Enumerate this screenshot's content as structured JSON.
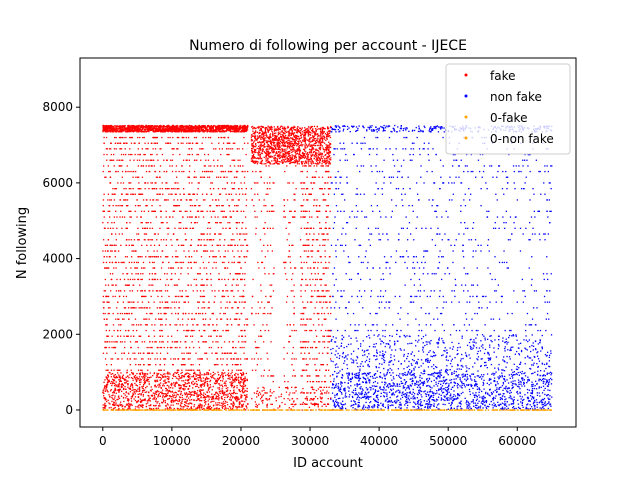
{
  "chart_data": {
    "type": "scatter",
    "title": "Numero di following per account - IJECE",
    "xlabel": "ID account",
    "ylabel": "N following",
    "xlim": [
      -3300,
      68500
    ],
    "ylim": [
      -450,
      9300
    ],
    "x_ticks": [
      0,
      10000,
      20000,
      30000,
      40000,
      50000,
      60000
    ],
    "y_ticks": [
      0,
      2000,
      4000,
      6000,
      8000
    ],
    "x_tick_labels": [
      "0",
      "10000",
      "20000",
      "30000",
      "40000",
      "50000",
      "60000"
    ],
    "y_tick_labels": [
      "0",
      "2000",
      "4000",
      "6000",
      "8000"
    ],
    "grid": false,
    "legend_position": "top-right",
    "series": [
      {
        "name": "fake",
        "color": "#ff0000",
        "marker": "dot",
        "approx_x_range": [
          0,
          33000
        ],
        "density_regions": [
          {
            "x": [
              0,
              21000
            ],
            "y": [
              0,
              1000
            ],
            "density": "saturated"
          },
          {
            "x": [
              0,
              21000
            ],
            "y": [
              1000,
              7500
            ],
            "density": "high"
          },
          {
            "x": [
              0,
              21000
            ],
            "y": [
              7350,
              7520
            ],
            "density": "saturated"
          },
          {
            "x": [
              21500,
              33000
            ],
            "y": [
              6500,
              7500
            ],
            "density": "saturated"
          },
          {
            "x": [
              21500,
              24800
            ],
            "y": [
              0,
              6500
            ],
            "density": "medium"
          },
          {
            "x": [
              26200,
              28000
            ],
            "y": [
              0,
              6500
            ],
            "density": "medium"
          },
          {
            "x": [
              28600,
              33000
            ],
            "y": [
              0,
              6500
            ],
            "density": "high"
          },
          {
            "x": [
              22000,
              33000
            ],
            "y": [
              0,
              600
            ],
            "density": "medium"
          }
        ]
      },
      {
        "name": "non fake",
        "color": "#0000ff",
        "marker": "dot",
        "approx_x_range": [
          33000,
          65000
        ],
        "density_regions": [
          {
            "x": [
              33000,
              65000
            ],
            "y": [
              0,
              1000
            ],
            "density": "saturated"
          },
          {
            "x": [
              33000,
              65000
            ],
            "y": [
              1000,
              2000
            ],
            "density": "high"
          },
          {
            "x": [
              33000,
              65000
            ],
            "y": [
              2000,
              7500
            ],
            "density": "medium"
          },
          {
            "x": [
              33000,
              65000
            ],
            "y": [
              7350,
              7520
            ],
            "density": "high"
          }
        ]
      },
      {
        "name": "0-fake",
        "color": "#ffa500",
        "marker": "dot",
        "y_value": 0,
        "approx_x_range": [
          0,
          33000
        ]
      },
      {
        "name": "0-non fake",
        "color": "#ffa500",
        "marker": "dot",
        "y_value": 0,
        "approx_x_range": [
          33000,
          65000
        ]
      }
    ]
  }
}
